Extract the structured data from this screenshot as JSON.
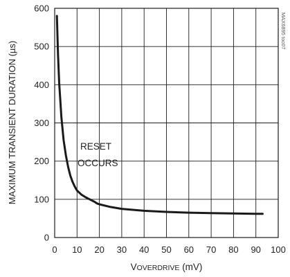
{
  "chart_data": {
    "type": "line",
    "xlabel": "VOVERDRIVE (mV)",
    "ylabel": "MAXIMUM TRANSIENT DURATION (µs)",
    "xlim": [
      0,
      100
    ],
    "ylim": [
      0,
      600
    ],
    "x_ticks": [
      "0",
      "10",
      "20",
      "30",
      "40",
      "50",
      "60",
      "70",
      "80",
      "90",
      "100"
    ],
    "y_ticks": [
      "0",
      "100",
      "200",
      "300",
      "400",
      "500",
      "600"
    ],
    "grid": true,
    "annotation": [
      "RESET",
      "OCCURS"
    ],
    "watermark": "MAX6895 toc07",
    "series": [
      {
        "color": "#1a1a1a",
        "x": [
          1,
          1.5,
          2,
          3,
          4,
          5,
          6,
          7,
          8,
          9,
          10,
          12,
          14,
          16,
          18,
          19,
          20,
          25,
          30,
          40,
          50,
          60,
          70,
          80,
          90,
          93
        ],
        "y": [
          580,
          480,
          405,
          315,
          255,
          215,
          185,
          162,
          146,
          133,
          123,
          112,
          105,
          99,
          93,
          89,
          87,
          80,
          75,
          70,
          67,
          65,
          64,
          63,
          62,
          62
        ]
      }
    ]
  }
}
